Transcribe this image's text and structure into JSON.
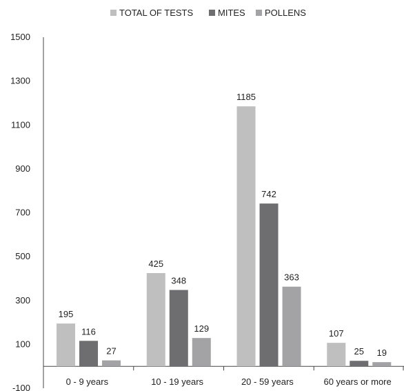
{
  "chart_data": {
    "type": "bar",
    "categories": [
      "0 - 9 years",
      "10 - 19 years",
      "20 - 59 years",
      "60 years or more"
    ],
    "series": [
      {
        "name": "TOTAL OF TESTS",
        "values": [
          195,
          425,
          1185,
          107
        ],
        "color": "#bfbfbf"
      },
      {
        "name": "MITES",
        "values": [
          116,
          348,
          742,
          25
        ],
        "color": "#6e6e70"
      },
      {
        "name": "POLLENS",
        "values": [
          27,
          129,
          363,
          19
        ],
        "color": "#a3a3a5"
      }
    ],
    "ylim": [
      -100,
      1500
    ],
    "yticks": [
      -100,
      100,
      300,
      500,
      700,
      900,
      1100,
      1300,
      1500
    ],
    "title": "",
    "xlabel": "",
    "ylabel": "",
    "legend_position": "top-center",
    "grid": false,
    "data_labels": true
  }
}
